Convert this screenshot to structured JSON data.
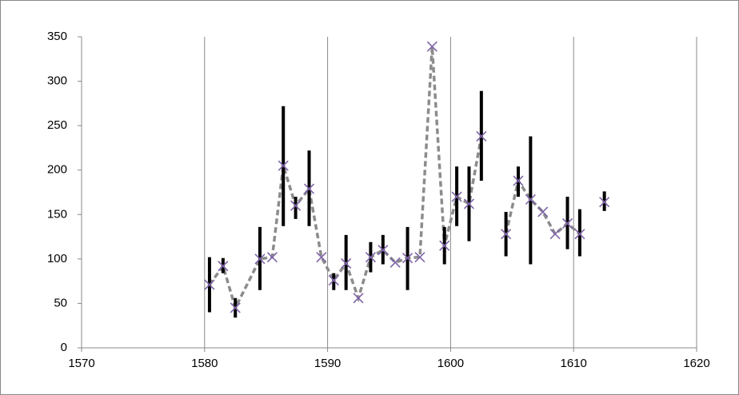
{
  "chart_data": {
    "type": "line",
    "x": [
      1580.4,
      1581.5,
      1582.5,
      1584.5,
      1585.5,
      1586.4,
      1587.4,
      1588.5,
      1589.5,
      1590.5,
      1591.5,
      1592.5,
      1593.5,
      1594.5,
      1595.5,
      1596.5,
      1597.5,
      1598.5,
      1599.5,
      1600.5,
      1601.5,
      1602.5,
      1603.5,
      1604.5,
      1605.5,
      1606.5,
      1607.5,
      1608.5,
      1609.5,
      1610.5,
      1611.5,
      1612.5
    ],
    "series": [
      {
        "color": "#7f64a8",
        "line_color": "#8c8c8c",
        "values": [
          71,
          92,
          45,
          100,
          102,
          205,
          160,
          179,
          102,
          76,
          95,
          56,
          102,
          110,
          96,
          101,
          102,
          339,
          115,
          170,
          162,
          238,
          null,
          128,
          188,
          167,
          153,
          128,
          140,
          128,
          null,
          164
        ],
        "low": [
          40,
          84,
          34,
          65,
          null,
          137,
          145,
          137,
          null,
          65,
          65,
          null,
          85,
          94,
          null,
          65,
          null,
          null,
          94,
          137,
          120,
          188,
          null,
          103,
          170,
          94,
          null,
          null,
          111,
          103,
          null,
          154
        ],
        "high": [
          102,
          101,
          56,
          136,
          null,
          272,
          170,
          222,
          null,
          84,
          127,
          null,
          119,
          127,
          null,
          136,
          null,
          null,
          136,
          204,
          204,
          289,
          null,
          153,
          204,
          238,
          null,
          null,
          170,
          156,
          null,
          176
        ],
        "range_color": "#000000"
      }
    ],
    "xlim": [
      1570,
      1620
    ],
    "xticks": [
      1570,
      1580,
      1590,
      1600,
      1610,
      1620
    ],
    "ylim": [
      0,
      350
    ],
    "yticks": [
      0,
      50,
      100,
      150,
      200,
      250,
      300,
      350
    ],
    "grid": "x"
  }
}
